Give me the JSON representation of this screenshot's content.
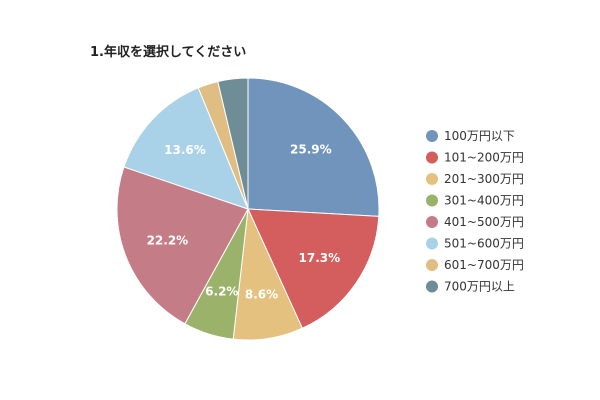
{
  "chart_data": {
    "type": "pie",
    "title": "1.年収を選択してください",
    "categories": [
      "100万円以下",
      "101~200万円",
      "201~300万円",
      "301~400万円",
      "401~500万円",
      "501~600万円",
      "601~700万円",
      "700万円以上"
    ],
    "values": [
      25.9,
      17.3,
      8.6,
      6.2,
      22.2,
      13.6,
      2.5,
      3.7
    ],
    "data_labels": [
      "25.9%",
      "17.3%",
      "8.6%",
      "6.2%",
      "22.2%",
      "13.6%",
      "",
      ""
    ],
    "colors": [
      "#7094bb",
      "#d45d5d",
      "#e5c17f",
      "#9bb26a",
      "#c47c86",
      "#a9d2e8",
      "#e0bd82",
      "#6f8d96"
    ],
    "legend_position": "right"
  }
}
